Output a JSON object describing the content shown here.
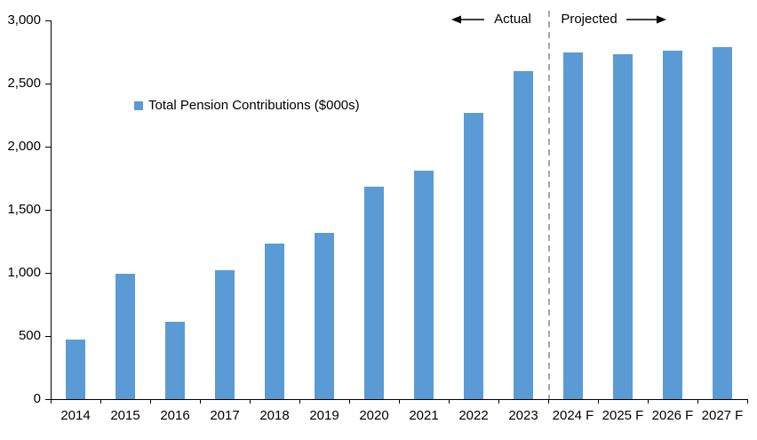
{
  "chart_data": {
    "type": "bar",
    "legend": "Total Pension Contributions ($000s)",
    "categories": [
      "2014",
      "2015",
      "2016",
      "2017",
      "2018",
      "2019",
      "2020",
      "2021",
      "2022",
      "2023",
      "2024 F",
      "2025 F",
      "2026 F",
      "2027 F"
    ],
    "values": [
      470,
      990,
      610,
      1020,
      1230,
      1320,
      1680,
      1810,
      2270,
      2600,
      2745,
      2735,
      2760,
      2790
    ],
    "ylim": [
      0,
      3000
    ],
    "ytick_step": 500,
    "ytick_labels": [
      "3,000",
      "2,500",
      "2,000",
      "1,500",
      "1,000",
      "500",
      "0"
    ],
    "sections": {
      "actual": "Actual",
      "projected": "Projected",
      "divider_after_category": "2023"
    },
    "legend_position": "upper-left-inside",
    "grid": "off",
    "colors": {
      "bar": "#5B9BD5",
      "divider": "#A6A6A6",
      "axis": "#000000",
      "text": "#000000",
      "background": "#FFFFFF"
    }
  }
}
